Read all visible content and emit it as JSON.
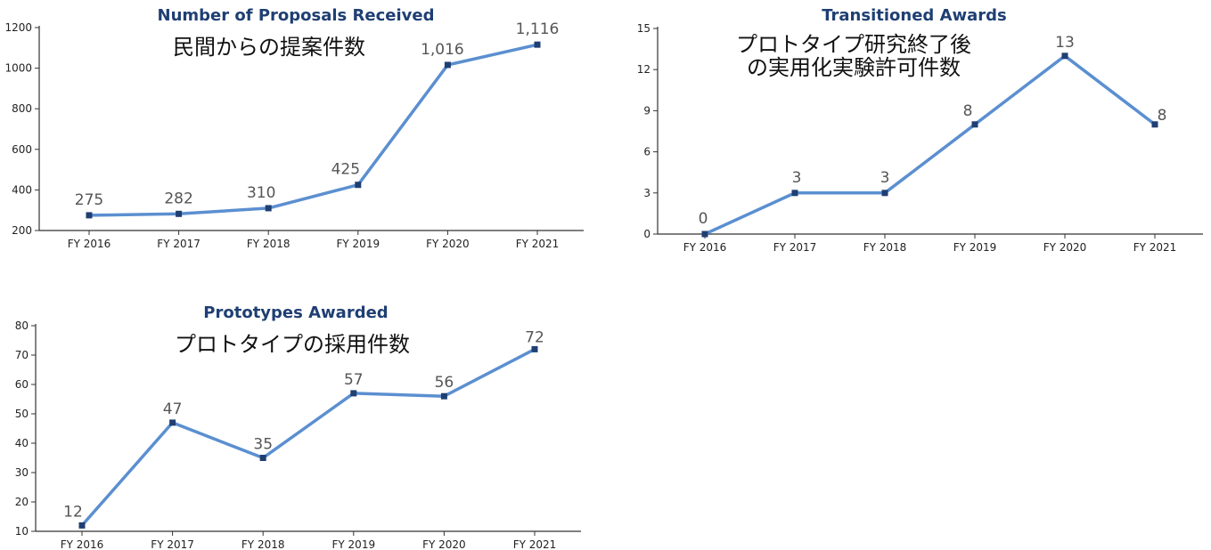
{
  "chart_data": [
    {
      "type": "line",
      "title": "Number of Proposals Received",
      "subtitle": "民間からの提案件数",
      "categories": [
        "FY 2016",
        "FY 2017",
        "FY 2018",
        "FY 2019",
        "FY 2020",
        "FY 2021"
      ],
      "series": [
        {
          "values": [
            275,
            282,
            310,
            425,
            1016,
            1116
          ]
        }
      ],
      "data_labels": [
        "275",
        "282",
        "310",
        "425",
        "1,016",
        "1,116"
      ],
      "yticks": [
        "200",
        "400",
        "600",
        "800",
        "1000",
        "1200"
      ],
      "ylim": [
        200,
        1200
      ],
      "grid": false,
      "line_color": "#5b8fd0",
      "marker_color": "#1f3f73",
      "title_color": "#1f3f73"
    },
    {
      "type": "line",
      "title": "Transitioned Awards",
      "subtitle": "プロトタイプ研究終了後\nの実用化実験許可件数",
      "subtitle_lines": [
        "プロトタイプ研究終了後",
        "の実用化実験許可件数"
      ],
      "categories": [
        "FY 2016",
        "FY 2017",
        "FY 2018",
        "FY 2019",
        "FY 2020",
        "FY 2021"
      ],
      "series": [
        {
          "values": [
            0,
            3,
            3,
            8,
            13,
            8
          ]
        }
      ],
      "data_labels": [
        "0",
        "3",
        "3",
        "8",
        "13",
        "8"
      ],
      "yticks": [
        "0",
        "3",
        "6",
        "9",
        "12",
        "15"
      ],
      "ylim": [
        0,
        15
      ],
      "grid": false,
      "line_color": "#5b8fd0",
      "marker_color": "#1f3f73",
      "title_color": "#1f3f73"
    },
    {
      "type": "line",
      "title": "Prototypes Awarded",
      "subtitle": "プロトタイプの採用件数",
      "categories": [
        "FY 2016",
        "FY 2017",
        "FY 2018",
        "FY 2019",
        "FY 2020",
        "FY 2021"
      ],
      "series": [
        {
          "values": [
            12,
            47,
            35,
            57,
            56,
            72
          ]
        }
      ],
      "data_labels": [
        "12",
        "47",
        "35",
        "57",
        "56",
        "72"
      ],
      "yticks": [
        "10",
        "20",
        "30",
        "40",
        "50",
        "60",
        "70",
        "80"
      ],
      "ylim": [
        10,
        80
      ],
      "grid": false,
      "line_color": "#5b8fd0",
      "marker_color": "#1f3f73",
      "title_color": "#1f3f73"
    }
  ]
}
